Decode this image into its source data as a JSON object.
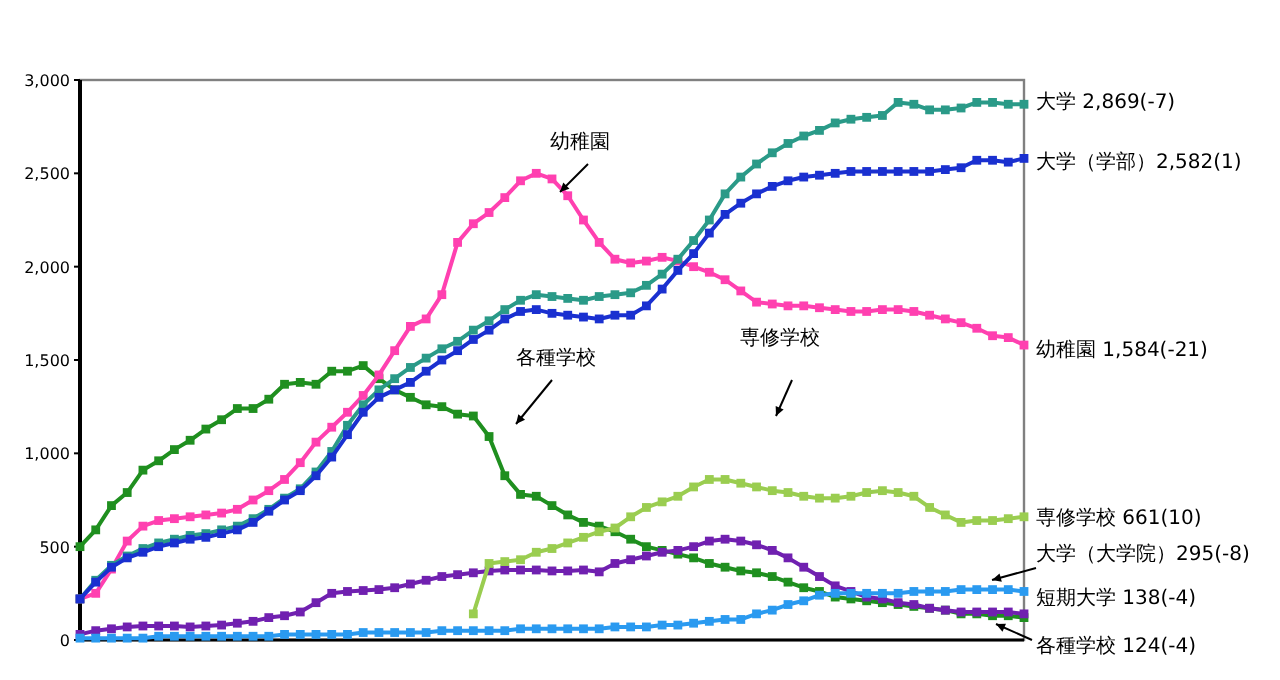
{
  "chart_data": {
    "type": "line",
    "categories": [
      null,
      null,
      null,
      null,
      null,
      null,
      null,
      null,
      null,
      null,
      null,
      null,
      null,
      null,
      null,
      null,
      null,
      null,
      null,
      null,
      null,
      null,
      null,
      null,
      null,
      null,
      null,
      null,
      null,
      null,
      null,
      null,
      null,
      null,
      null,
      null,
      null,
      null,
      null,
      null,
      null,
      null,
      null,
      null,
      null,
      null,
      null,
      null,
      null,
      null,
      null,
      null,
      null,
      null,
      null,
      null,
      null,
      null,
      null,
      null,
      null
    ],
    "ylim": [
      0,
      3000
    ],
    "yticks": [
      {
        "value": 0,
        "label": "0"
      },
      {
        "value": 500,
        "label": "500"
      },
      {
        "value": 1000,
        "label": "1,000"
      },
      {
        "value": 1500,
        "label": "1,500"
      },
      {
        "value": 2000,
        "label": "2,000"
      },
      {
        "value": 2500,
        "label": "2,500"
      },
      {
        "value": 3000,
        "label": "3,000"
      }
    ],
    "tick_labels": "y",
    "marker": "square",
    "series": [
      {
        "color": "#1f8f1f",
        "values": [
          500,
          590,
          720,
          790,
          910,
          960,
          1020,
          1070,
          1130,
          1180,
          1240,
          1240,
          1290,
          1370,
          1380,
          1370,
          1440,
          1440,
          1470,
          1400,
          1340,
          1300,
          1260,
          1250,
          1210,
          1200,
          1090,
          880,
          780,
          770,
          720,
          670,
          630,
          610,
          580,
          540,
          500,
          480,
          460,
          440,
          410,
          390,
          370,
          360,
          340,
          310,
          280,
          260,
          230,
          220,
          210,
          200,
          190,
          180,
          170,
          160,
          140,
          140,
          130,
          130,
          120
        ]
      },
      {
        "color": "#ff40b0",
        "values": [
          220,
          250,
          380,
          530,
          610,
          640,
          650,
          660,
          670,
          680,
          700,
          750,
          800,
          860,
          950,
          1060,
          1140,
          1220,
          1310,
          1420,
          1550,
          1680,
          1720,
          1850,
          2130,
          2230,
          2290,
          2370,
          2460,
          2500,
          2470,
          2380,
          2250,
          2130,
          2040,
          2020,
          2030,
          2050,
          2030,
          2000,
          1970,
          1930,
          1870,
          1810,
          1800,
          1790,
          1790,
          1780,
          1770,
          1760,
          1760,
          1770,
          1770,
          1760,
          1740,
          1720,
          1700,
          1670,
          1630,
          1620,
          1580
        ]
      },
      {
        "color": "#2a9a88",
        "values": [
          220,
          320,
          400,
          450,
          490,
          520,
          540,
          560,
          570,
          590,
          610,
          650,
          700,
          760,
          810,
          900,
          1010,
          1150,
          1260,
          1340,
          1400,
          1460,
          1510,
          1560,
          1600,
          1660,
          1710,
          1770,
          1820,
          1850,
          1840,
          1830,
          1820,
          1840,
          1850,
          1860,
          1900,
          1960,
          2040,
          2140,
          2250,
          2390,
          2480,
          2550,
          2610,
          2660,
          2700,
          2730,
          2770,
          2790,
          2800,
          2810,
          2880,
          2870,
          2840,
          2840,
          2850,
          2880,
          2880,
          2870,
          2870
        ]
      },
      {
        "color": "#1a30d0",
        "values": [
          220,
          310,
          390,
          440,
          470,
          500,
          520,
          540,
          550,
          570,
          590,
          630,
          690,
          750,
          800,
          880,
          980,
          1100,
          1220,
          1300,
          1340,
          1380,
          1440,
          1500,
          1550,
          1610,
          1660,
          1720,
          1760,
          1770,
          1750,
          1740,
          1730,
          1720,
          1740,
          1740,
          1790,
          1880,
          1980,
          2070,
          2180,
          2280,
          2340,
          2390,
          2430,
          2460,
          2480,
          2490,
          2500,
          2510,
          2510,
          2510,
          2510,
          2510,
          2510,
          2520,
          2530,
          2570,
          2570,
          2560,
          2580
        ]
      },
      {
        "color": "#7020b0",
        "values": [
          30,
          50,
          60,
          70,
          75,
          75,
          75,
          70,
          75,
          80,
          90,
          100,
          120,
          130,
          150,
          200,
          250,
          260,
          265,
          270,
          280,
          300,
          320,
          340,
          350,
          360,
          370,
          375,
          375,
          375,
          370,
          370,
          375,
          365,
          410,
          430,
          450,
          470,
          480,
          500,
          530,
          540,
          530,
          510,
          480,
          440,
          390,
          340,
          290,
          260,
          230,
          220,
          200,
          190,
          170,
          160,
          150,
          150,
          150,
          150,
          140
        ]
      },
      {
        "color": "#2a9af0",
        "values": [
          10,
          10,
          10,
          10,
          10,
          20,
          20,
          20,
          20,
          20,
          20,
          20,
          20,
          30,
          30,
          30,
          30,
          30,
          40,
          40,
          40,
          40,
          40,
          50,
          50,
          50,
          50,
          50,
          60,
          60,
          60,
          60,
          60,
          60,
          70,
          70,
          70,
          80,
          80,
          90,
          100,
          110,
          110,
          140,
          160,
          190,
          210,
          240,
          250,
          250,
          250,
          250,
          250,
          260,
          260,
          260,
          270,
          270,
          270,
          270,
          260
        ]
      },
      {
        "color": "#9acd50",
        "values": [
          null,
          null,
          null,
          null,
          null,
          null,
          null,
          null,
          null,
          null,
          null,
          null,
          null,
          null,
          null,
          null,
          null,
          null,
          null,
          null,
          null,
          null,
          null,
          null,
          null,
          140,
          410,
          420,
          430,
          470,
          490,
          520,
          550,
          580,
          600,
          660,
          710,
          740,
          770,
          820,
          860,
          860,
          840,
          820,
          800,
          790,
          770,
          760,
          760,
          770,
          790,
          800,
          790,
          770,
          710,
          670,
          630,
          640,
          640,
          650,
          660
        ]
      }
    ],
    "annotations": [
      "幼稚園",
      "各種学校",
      "専修学校",
      "大学 2,869(-7)",
      "大学（学部）2,582(1)",
      "幼稚園 1,584(-21)",
      "専修学校 661(10)",
      "大学（大学院）295(-8)",
      "短期大学 138(-4)",
      "各種学校 124(-4)"
    ]
  }
}
